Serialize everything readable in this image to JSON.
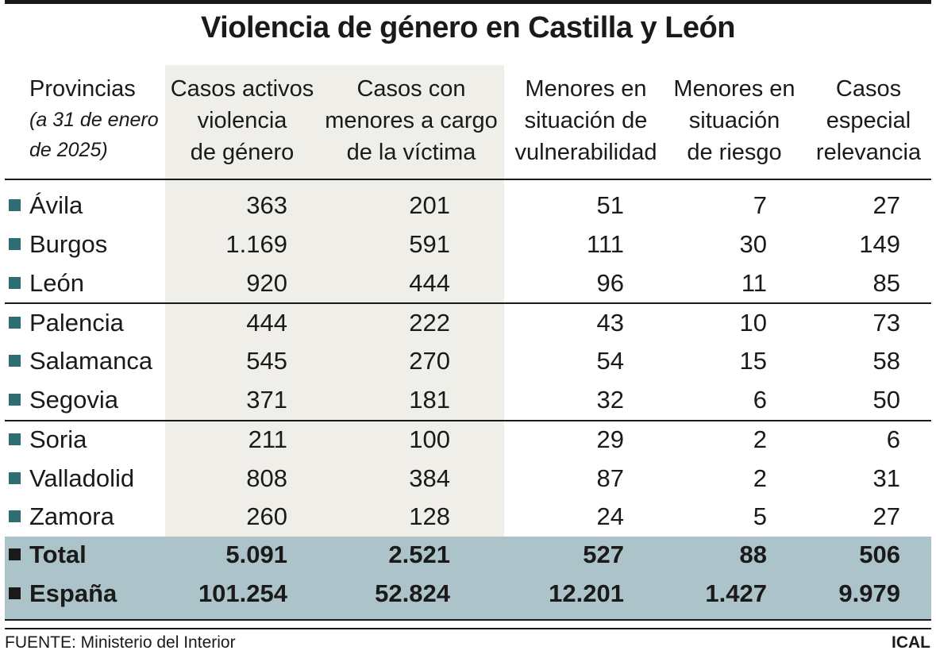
{
  "title": "Violencia de género en Castilla y León",
  "header": {
    "provincias": "Provincias",
    "provincias_note_1": "(a 31 de enero",
    "provincias_note_2": "de 2025)",
    "col1": [
      "Casos activos",
      "violencia",
      "de género"
    ],
    "col2": [
      "Casos con",
      "menores a cargo",
      "de la víctima"
    ],
    "col3": [
      "Menores en",
      "situación de",
      "vulnerabilidad"
    ],
    "col4": [
      "Menores en",
      "situación",
      "de riesgo"
    ],
    "col5": [
      "Casos",
      "especial",
      "relevancia"
    ]
  },
  "chart_data": {
    "type": "table",
    "title": "Violencia de género en Castilla y León",
    "columns": [
      "Provincias",
      "Casos activos violencia de género",
      "Casos con menores a cargo de la víctima",
      "Menores en situación de vulnerabilidad",
      "Menores en situación de riesgo",
      "Casos especial relevancia"
    ],
    "rows": [
      {
        "name": "Ávila",
        "values": [
          "363",
          "201",
          "51",
          "7",
          "27"
        ]
      },
      {
        "name": "Burgos",
        "values": [
          "1.169",
          "591",
          "111",
          "30",
          "149"
        ]
      },
      {
        "name": "León",
        "values": [
          "920",
          "444",
          "96",
          "11",
          "85"
        ]
      },
      {
        "name": "Palencia",
        "values": [
          "444",
          "222",
          "43",
          "10",
          "73"
        ]
      },
      {
        "name": "Salamanca",
        "values": [
          "545",
          "270",
          "54",
          "15",
          "58"
        ]
      },
      {
        "name": "Segovia",
        "values": [
          "371",
          "181",
          "32",
          "6",
          "50"
        ]
      },
      {
        "name": "Soria",
        "values": [
          "211",
          "100",
          "29",
          "2",
          "6"
        ]
      },
      {
        "name": "Valladolid",
        "values": [
          "808",
          "384",
          "87",
          "2",
          "31"
        ]
      },
      {
        "name": "Zamora",
        "values": [
          "260",
          "128",
          "24",
          "5",
          "27"
        ]
      }
    ],
    "totals": [
      {
        "name": "Total",
        "values": [
          "5.091",
          "2.521",
          "527",
          "88",
          "506"
        ]
      },
      {
        "name": "España",
        "values": [
          "101.254",
          "52.824",
          "12.201",
          "1.427",
          "9.979"
        ]
      }
    ]
  },
  "footer": {
    "source": "FUENTE: Ministerio del Interior",
    "brand": "ICAL"
  },
  "colors": {
    "shaded_column": "#efeee9",
    "total_band": "#adc3ca",
    "bullet": "#2e6e72"
  }
}
